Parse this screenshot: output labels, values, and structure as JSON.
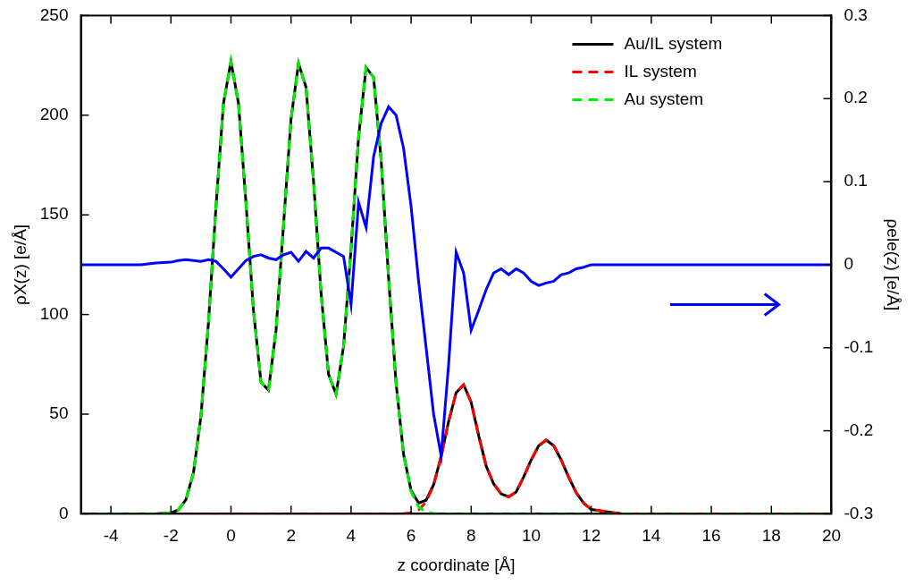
{
  "chart_data": {
    "type": "line",
    "x_label": "z coordinate [Å]",
    "y_label": "ρX(z) [e/Å]",
    "y2_label": "ρele(z) [e/Å]",
    "xlim": [
      -5,
      20
    ],
    "xticks": [
      -4,
      -2,
      0,
      2,
      4,
      6,
      8,
      10,
      12,
      14,
      16,
      18,
      20
    ],
    "ylim": [
      0,
      250
    ],
    "yticks": [
      0,
      50,
      100,
      150,
      200,
      250
    ],
    "y2lim": [
      -0.3,
      0.3
    ],
    "y2ticks": [
      -0.3,
      -0.2,
      -0.1,
      0,
      0.1,
      0.2,
      0.3
    ],
    "grid": false,
    "legend": "upper right",
    "x": [
      -5,
      -4,
      -3,
      -2.5,
      -2,
      -1.75,
      -1.5,
      -1.25,
      -1,
      -0.75,
      -0.5,
      -0.25,
      0,
      0.25,
      0.5,
      0.75,
      1,
      1.25,
      1.5,
      1.75,
      2,
      2.25,
      2.5,
      2.75,
      3,
      3.25,
      3.5,
      3.75,
      4,
      4.25,
      4.5,
      4.75,
      5,
      5.25,
      5.5,
      5.75,
      6,
      6.25,
      6.5,
      6.75,
      7,
      7.25,
      7.5,
      7.75,
      8,
      8.25,
      8.5,
      8.75,
      9,
      9.25,
      9.5,
      9.75,
      10,
      10.25,
      10.5,
      10.75,
      11,
      11.25,
      11.5,
      11.75,
      12,
      13,
      14,
      15,
      16,
      17,
      18,
      19,
      20
    ],
    "series": [
      {
        "name": "Au/IL system",
        "color": "#000000",
        "line_style": "solid",
        "values": [
          0,
          0,
          0,
          0,
          0.5,
          2,
          7.1,
          20.5,
          49,
          96,
          154,
          206,
          227,
          206,
          156,
          102,
          66,
          62,
          92,
          145,
          198,
          226,
          214,
          167,
          111,
          70,
          60,
          84,
          133,
          189,
          224,
          219,
          178,
          118.5,
          65.3,
          29.8,
          11.6,
          5.4,
          6.8,
          14.6,
          28.7,
          46.4,
          60.8,
          64.7,
          56,
          39.3,
          24,
          15,
          10,
          8.5,
          11,
          18.5,
          27,
          34.2,
          37,
          34.2,
          27,
          18.3,
          10.6,
          5.3,
          2.2,
          0,
          0,
          0,
          0,
          0,
          0,
          0,
          0
        ]
      },
      {
        "name": "IL system",
        "color": "#ff0000",
        "line_style": "dashed",
        "values": [
          0,
          0,
          0,
          0,
          0,
          0,
          0,
          0,
          0,
          0,
          0,
          0,
          0,
          0,
          0,
          0,
          0,
          0,
          0,
          0,
          0,
          0,
          0,
          0,
          0,
          0,
          0,
          0,
          0,
          0,
          0,
          0,
          0,
          0,
          0,
          0.1,
          0.5,
          2,
          5.9,
          14.4,
          28.7,
          46.4,
          60.8,
          64.7,
          56,
          39.3,
          24,
          15,
          10,
          8.5,
          11,
          18.5,
          27,
          34.2,
          37,
          34.2,
          27,
          18.3,
          10.6,
          5.3,
          2.2,
          0,
          0,
          0,
          0,
          0,
          0,
          0,
          0
        ]
      },
      {
        "name": "Au system",
        "color": "#00ee00",
        "line_style": "dashed",
        "values": [
          0,
          0,
          0,
          0,
          0.5,
          2,
          7.1,
          20.5,
          49,
          96,
          154,
          206,
          227,
          206,
          156,
          102,
          66,
          62,
          92,
          145,
          198,
          226,
          214,
          167,
          111,
          70,
          60,
          84,
          133,
          189,
          224,
          219,
          178,
          118.5,
          65.3,
          29.7,
          11.1,
          3.4,
          0.9,
          0.2,
          0,
          0,
          0,
          0,
          0,
          0,
          0,
          0,
          0,
          0,
          0,
          0,
          0,
          0,
          0,
          0,
          0,
          0,
          0,
          0,
          0,
          0,
          0,
          0,
          0,
          0,
          0,
          0,
          0
        ]
      },
      {
        "color": "#0000ff",
        "line_style": "solid",
        "axis": "y2",
        "values": [
          0,
          0,
          0,
          0.002,
          0.003,
          0.005,
          0.006,
          0.005,
          0.004,
          0.006,
          0.004,
          -0.005,
          -0.015,
          -0.005,
          0.005,
          0.01,
          0.012,
          0.008,
          0.006,
          0.012,
          0.015,
          0.004,
          0.016,
          0.008,
          0.02,
          0.02,
          0.015,
          0.01,
          -0.048,
          0.075,
          0.045,
          0.13,
          0.17,
          0.19,
          0.18,
          0.14,
          0.07,
          -0.02,
          -0.1,
          -0.18,
          -0.23,
          -0.12,
          0.015,
          -0.01,
          -0.079,
          -0.055,
          -0.03,
          -0.01,
          -0.005,
          -0.012,
          -0.005,
          -0.01,
          -0.02,
          -0.025,
          -0.022,
          -0.02,
          -0.012,
          -0.01,
          -0.005,
          -0.003,
          0,
          0,
          0,
          0,
          0,
          0,
          0,
          0,
          0
        ]
      }
    ]
  }
}
